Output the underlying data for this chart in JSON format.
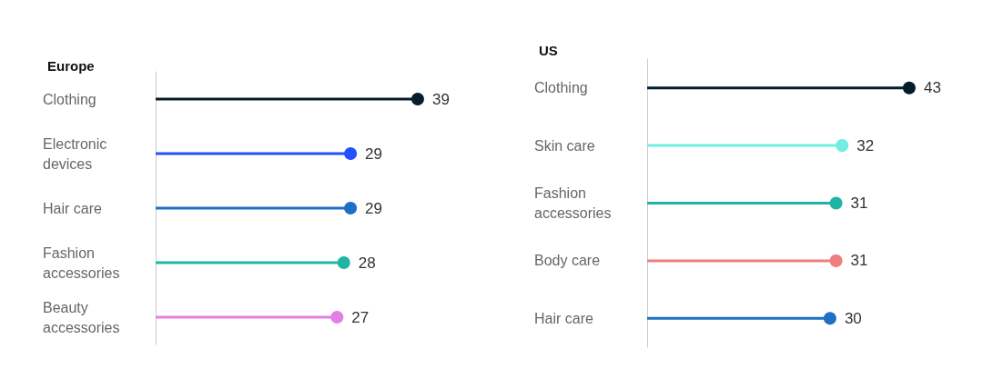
{
  "chart_data": [
    {
      "type": "lollipop",
      "title": "Europe",
      "orientation": "horizontal",
      "categories": [
        "Clothing",
        "Electronic devices",
        "Hair care",
        "Fashion accessories",
        "Beauty accessories"
      ],
      "values": [
        39,
        29,
        29,
        28,
        27
      ],
      "colors": [
        "#051c2c",
        "#2251ff",
        "#1f6fc5",
        "#1fb5a5",
        "#e57fe6"
      ],
      "data_labels": true,
      "marker": "circle",
      "tick_labels": "y"
    },
    {
      "type": "lollipop",
      "title": "US",
      "orientation": "horizontal",
      "categories": [
        "Clothing",
        "Skin care",
        "Fashion accessories",
        "Body care",
        "Hair care"
      ],
      "values": [
        43,
        32,
        31,
        31,
        30
      ],
      "colors": [
        "#051c2c",
        "#72ede0",
        "#1fb5a5",
        "#f07e7e",
        "#1f6fc5"
      ],
      "data_labels": true,
      "marker": "circle",
      "tick_labels": "y"
    }
  ]
}
